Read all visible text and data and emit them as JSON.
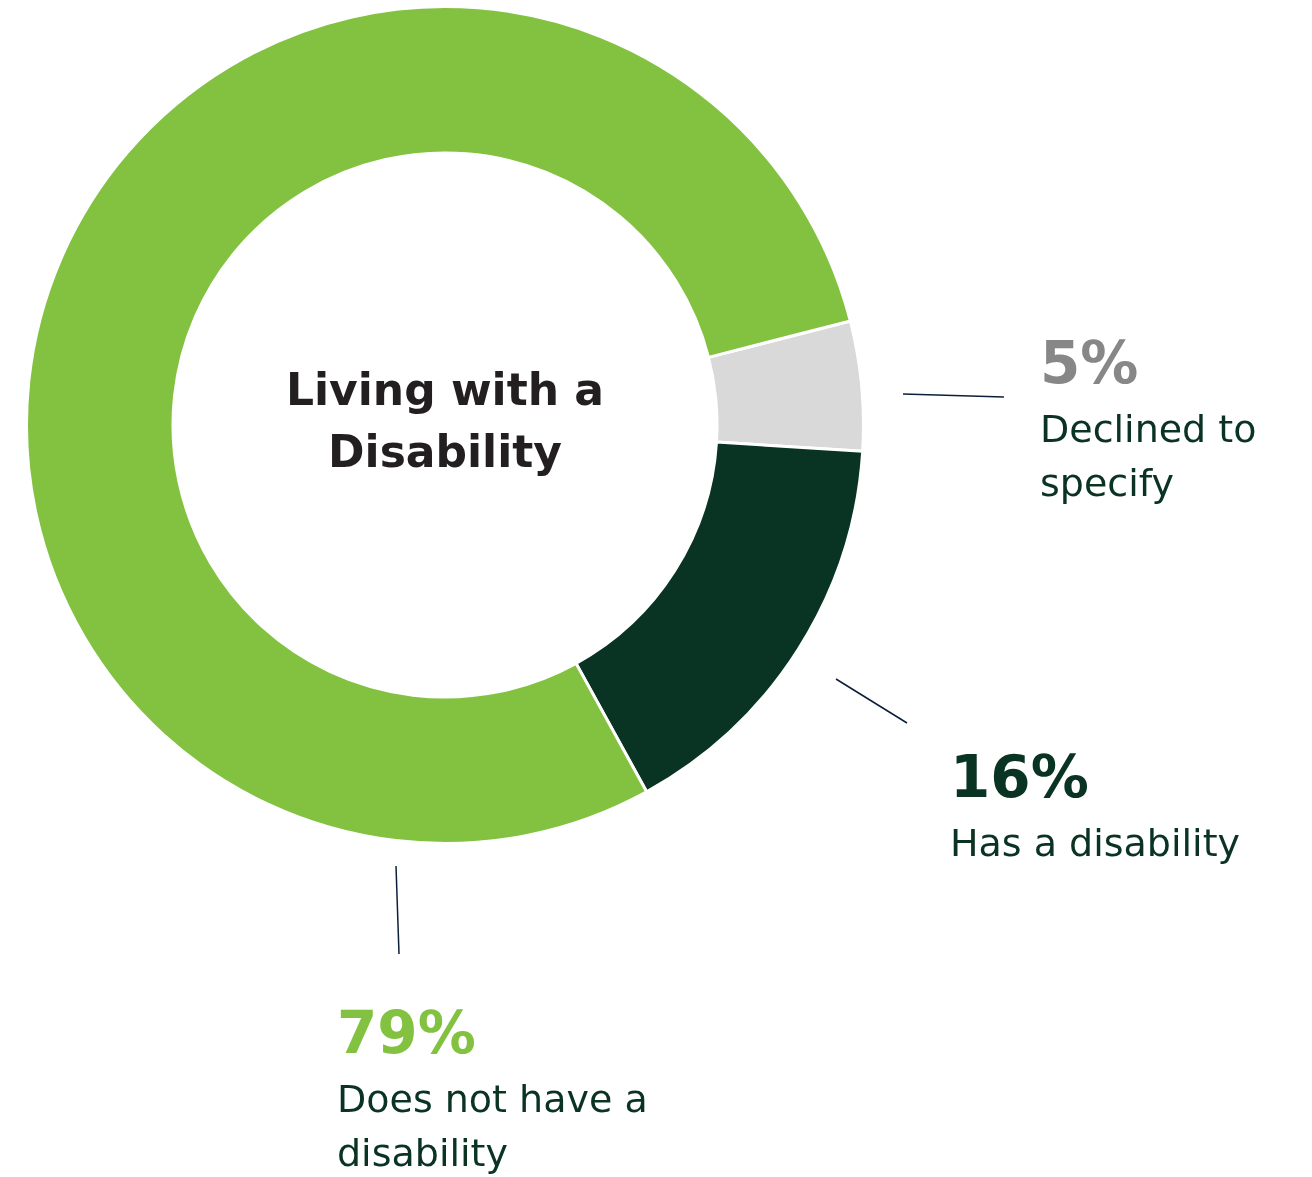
{
  "chart_data": {
    "type": "donut",
    "title": "Living with a Disability",
    "categories": [
      "Declined to specify",
      "Has a disability",
      "Does not have a disability"
    ],
    "values": [
      5,
      16,
      79
    ],
    "colors": [
      "#d9d9d9",
      "#093323",
      "#83c241"
    ],
    "value_labels": [
      "5%",
      "16%",
      "79%"
    ],
    "legend": false
  }
}
